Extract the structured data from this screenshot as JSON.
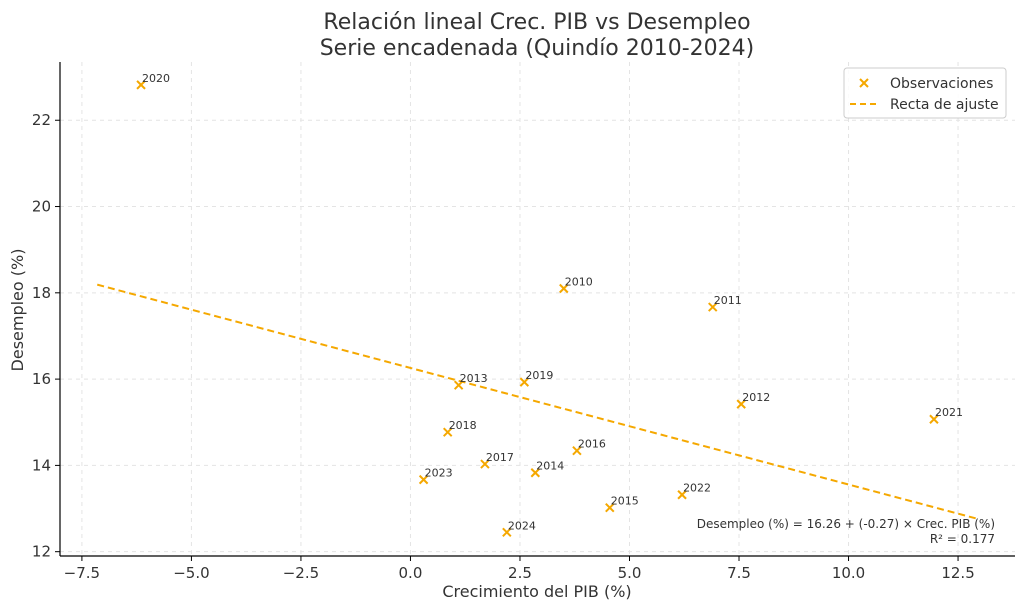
{
  "chart_data": {
    "type": "scatter",
    "title": "Relación lineal Crec. PIB vs Desempleo",
    "subtitle": "Serie encadenada (Quindío 2010-2024)",
    "xlabel": "Crecimiento del PIB (%)",
    "ylabel": "Desempleo (%)",
    "xlim": [
      -8.0,
      13.8
    ],
    "ylim": [
      11.9,
      23.35
    ],
    "xticks": [
      -7.5,
      -5.0,
      -2.5,
      0.0,
      2.5,
      5.0,
      7.5,
      10.0,
      12.5
    ],
    "xtick_labels": [
      "−7.5",
      "−5.0",
      "−2.5",
      "0.0",
      "2.5",
      "5.0",
      "7.5",
      "10.0",
      "12.5"
    ],
    "yticks": [
      12,
      14,
      16,
      18,
      20,
      22
    ],
    "ytick_labels": [
      "12",
      "14",
      "16",
      "18",
      "20",
      "22"
    ],
    "grid": true,
    "legend": {
      "placement": "top-right",
      "entries": [
        "Observaciones",
        "Recta de ajuste"
      ]
    },
    "series": [
      {
        "name": "Observaciones",
        "marker": "x",
        "color": "#f5a800",
        "points": [
          {
            "label": "2010",
            "x": 3.5,
            "y": 18.1
          },
          {
            "label": "2011",
            "x": 6.9,
            "y": 17.67
          },
          {
            "label": "2012",
            "x": 7.55,
            "y": 15.42
          },
          {
            "label": "2013",
            "x": 1.1,
            "y": 15.86
          },
          {
            "label": "2014",
            "x": 2.85,
            "y": 13.83
          },
          {
            "label": "2015",
            "x": 4.55,
            "y": 13.02
          },
          {
            "label": "2016",
            "x": 3.8,
            "y": 14.34
          },
          {
            "label": "2017",
            "x": 1.7,
            "y": 14.03
          },
          {
            "label": "2018",
            "x": 0.85,
            "y": 14.77
          },
          {
            "label": "2019",
            "x": 2.6,
            "y": 15.93
          },
          {
            "label": "2020",
            "x": -6.15,
            "y": 22.82
          },
          {
            "label": "2021",
            "x": 11.95,
            "y": 15.07
          },
          {
            "label": "2022",
            "x": 6.2,
            "y": 13.32
          },
          {
            "label": "2023",
            "x": 0.3,
            "y": 13.67
          },
          {
            "label": "2024",
            "x": 2.2,
            "y": 12.45
          }
        ]
      },
      {
        "name": "Recta de ajuste",
        "style": "dashed",
        "color": "#f5a800",
        "x": [
          -7.15,
          12.95
        ],
        "y": [
          18.19,
          12.76
        ]
      }
    ],
    "annotation": {
      "line1": "Desempleo (%) = 16.26 + (-0.27) × Crec. PIB (%)",
      "line2": "R² = 0.177"
    }
  }
}
